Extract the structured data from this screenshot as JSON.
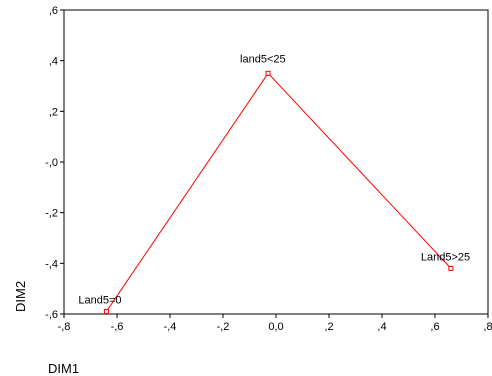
{
  "chart_data": {
    "type": "line",
    "xlabel": "DIM1",
    "ylabel": "DIM2",
    "xlim": [
      -0.8,
      0.8
    ],
    "ylim": [
      -0.6,
      0.6
    ],
    "x_ticks": [
      -0.8,
      -0.6,
      -0.4,
      -0.2,
      0.0,
      0.2,
      0.4,
      0.6,
      0.8
    ],
    "x_tick_labels": [
      "-,8",
      "-,6",
      "-,4",
      "-,2",
      "0,0",
      ",2",
      ",4",
      ",6",
      ",8"
    ],
    "y_ticks": [
      0.6,
      0.4,
      0.2,
      0.0,
      -0.2,
      -0.4,
      -0.6
    ],
    "y_tick_labels": [
      ",6",
      ",4",
      ",2",
      "-,0",
      "-,2",
      "-,4",
      "-,6"
    ],
    "grid": false,
    "series": [
      {
        "points": [
          {
            "label": "Land5=0",
            "x": -0.64,
            "y": -0.59
          },
          {
            "label": "land5<25",
            "x": -0.03,
            "y": 0.35
          },
          {
            "label": "Land5>25",
            "x": 0.66,
            "y": -0.42
          }
        ]
      }
    ],
    "colors": {
      "line": "#ff0000",
      "marker": "#ff0000",
      "axis": "#000000"
    }
  }
}
